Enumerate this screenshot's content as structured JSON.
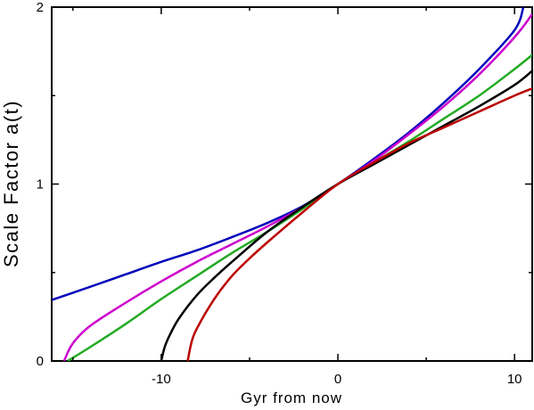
{
  "chart_data": {
    "type": "line",
    "title": "",
    "xlabel": "Gyr from now",
    "ylabel": "Scale Factor a(t)",
    "xlim": [
      -16.2,
      11
    ],
    "ylim": [
      0,
      2
    ],
    "xticks": [
      -10,
      0,
      10
    ],
    "xtick_labels": [
      "-10",
      "0",
      "10"
    ],
    "yticks": [
      0,
      1,
      2
    ],
    "ytick_labels": [
      "0",
      "1",
      "2"
    ],
    "grid": false,
    "legend": "none",
    "series": [
      {
        "color": "#0000bb",
        "x": [
          -16.2,
          -14,
          -12,
          -10,
          -8,
          -6,
          -4,
          -2,
          0,
          2,
          4,
          6,
          8,
          10,
          10.5
        ],
        "y": [
          0.345,
          0.42,
          0.49,
          0.56,
          0.625,
          0.7,
          0.78,
          0.875,
          1.0,
          1.14,
          1.29,
          1.46,
          1.65,
          1.87,
          2.0
        ]
      },
      {
        "color": "#cc00cc",
        "x": [
          -15.5,
          -15,
          -14,
          -12,
          -10,
          -8,
          -6,
          -4,
          -2,
          0,
          2,
          4,
          6,
          8,
          10,
          11
        ],
        "y": [
          0.0,
          0.1,
          0.2,
          0.33,
          0.45,
          0.56,
          0.66,
          0.76,
          0.87,
          1.0,
          1.13,
          1.28,
          1.44,
          1.62,
          1.83,
          1.96
        ]
      },
      {
        "color": "#22aa22",
        "x": [
          -15.3,
          -14,
          -12,
          -10,
          -8,
          -6,
          -4,
          -2,
          0,
          2,
          4,
          6,
          8,
          10,
          11
        ],
        "y": [
          0.0,
          0.08,
          0.21,
          0.35,
          0.48,
          0.61,
          0.73,
          0.86,
          1.0,
          1.12,
          1.24,
          1.37,
          1.5,
          1.65,
          1.73
        ]
      },
      {
        "color": "#000000",
        "x": [
          -10.0,
          -9.8,
          -9.5,
          -9,
          -8,
          -7,
          -6,
          -4,
          -2,
          0,
          2,
          4,
          6,
          8,
          10,
          11
        ],
        "y": [
          0.0,
          0.08,
          0.15,
          0.24,
          0.37,
          0.47,
          0.56,
          0.73,
          0.87,
          1.0,
          1.11,
          1.22,
          1.33,
          1.44,
          1.56,
          1.64
        ]
      },
      {
        "color": "#bb0000",
        "x": [
          -8.5,
          -8.3,
          -8,
          -7,
          -6,
          -5,
          -4,
          -2,
          0,
          2,
          4,
          6,
          8,
          10,
          11
        ],
        "y": [
          0.0,
          0.1,
          0.18,
          0.35,
          0.48,
          0.58,
          0.67,
          0.84,
          1.0,
          1.12,
          1.23,
          1.32,
          1.41,
          1.5,
          1.54
        ]
      }
    ]
  }
}
